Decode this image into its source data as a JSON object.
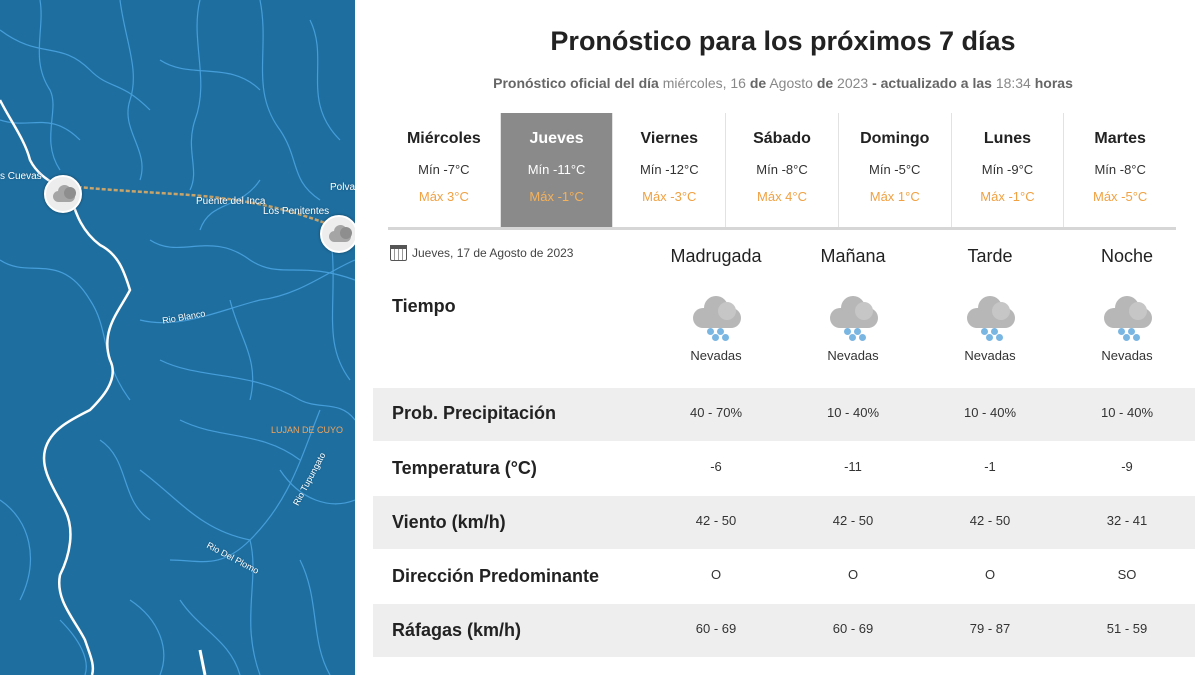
{
  "map": {
    "labels": {
      "las_cuevas": "s Cuevas",
      "polva": "Polva",
      "puente_del_inca": "Puente del Inca",
      "los_penitentes": "Los Penitentes",
      "rio_blanco": "Rio Blanco",
      "lujan_de_cuyo": "LUJAN DE CUYO",
      "rio_tupungato": "Rio Tupungato",
      "rio_del_plomo": "Rio Del Plomo"
    },
    "colors": {
      "water": "#1e6fa0",
      "river": "#4aa3e0",
      "road": "#c8a46a",
      "boundary": "#ffffff"
    },
    "marker_icon": "cloud-icon"
  },
  "header": {
    "title": "Pronóstico para los próximos 7 días",
    "sub_a": "Pronóstico oficial del día",
    "sub_weekday": "miércoles, 16",
    "sub_de1": "de",
    "sub_month": "Agosto",
    "sub_de2": "de",
    "sub_year": "2023",
    "sub_b": "- actualizado a las",
    "sub_time": "18:34",
    "sub_c": "horas"
  },
  "days": [
    {
      "name": "Miércoles",
      "min": "Mín -7°C",
      "max": "Máx 3°C"
    },
    {
      "name": "Jueves",
      "min": "Mín -11°C",
      "max": "Máx -1°C"
    },
    {
      "name": "Viernes",
      "min": "Mín -12°C",
      "max": "Máx -3°C"
    },
    {
      "name": "Sábado",
      "min": "Mín -8°C",
      "max": "Máx 4°C"
    },
    {
      "name": "Domingo",
      "min": "Mín -5°C",
      "max": "Máx 1°C"
    },
    {
      "name": "Lunes",
      "min": "Mín -9°C",
      "max": "Máx -1°C"
    },
    {
      "name": "Martes",
      "min": "Mín -8°C",
      "max": "Máx -5°C"
    }
  ],
  "selected_day": "Jueves",
  "colors": {
    "selected_day_bg": "#8a8a8a",
    "max_temp": "#f0a142",
    "row_shade": "#eeeeee",
    "snow_dots": "#7ab6e2"
  },
  "detail": {
    "date_icon": "calendar-icon",
    "date": "Jueves, 17 de Agosto de 2023",
    "periods": [
      "Madrugada",
      "Mañana",
      "Tarde",
      "Noche"
    ],
    "weather_label": "Tiempo",
    "weather": [
      {
        "icon": "snow-cloud-icon",
        "text": "Nevadas"
      },
      {
        "icon": "snow-cloud-icon",
        "text": "Nevadas"
      },
      {
        "icon": "snow-cloud-icon",
        "text": "Nevadas"
      },
      {
        "icon": "snow-cloud-icon",
        "text": "Nevadas"
      }
    ],
    "rows": [
      {
        "label": "Prob. Precipitación",
        "values": [
          "40 - 70%",
          "10 - 40%",
          "10 - 40%",
          "10 - 40%"
        ]
      },
      {
        "label": "Temperatura (°C)",
        "values": [
          "-6",
          "-11",
          "-1",
          "-9"
        ]
      },
      {
        "label": "Viento (km/h)",
        "values": [
          "42 - 50",
          "42 - 50",
          "42 - 50",
          "32 - 41"
        ]
      },
      {
        "label": "Dirección Predominante",
        "values": [
          "O",
          "O",
          "O",
          "SO"
        ]
      },
      {
        "label": "Ráfagas (km/h)",
        "values": [
          "60 - 69",
          "60 - 69",
          "79 - 87",
          "51 - 59"
        ]
      }
    ]
  }
}
